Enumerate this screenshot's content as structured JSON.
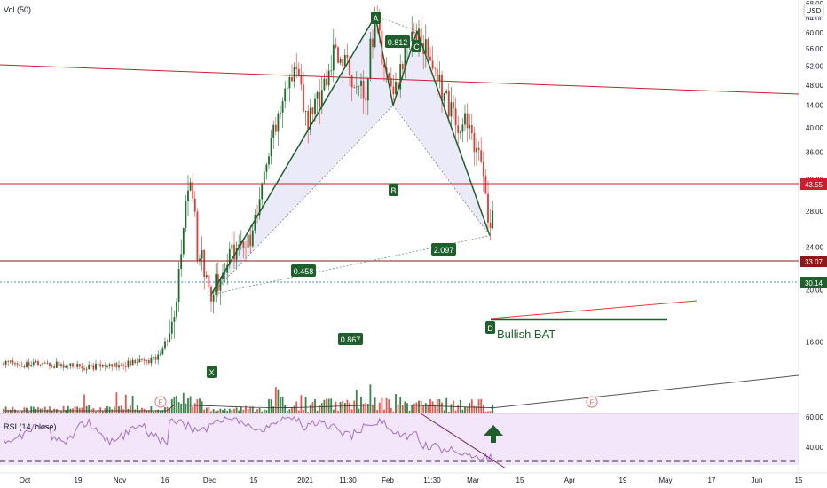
{
  "header": {
    "vol_label": "Vol (50)",
    "currency": "USD",
    "rsi_label": "RSI (14, close)"
  },
  "colors": {
    "bull": "#1b6d2b",
    "bear": "#e53935",
    "pattern_fill": "#e8e6f8",
    "rsi_band": "#f3e6fb",
    "rsi_line": "#a270c6",
    "hline": "#cc1e2c",
    "price_line": "#1565c0",
    "accent_green": "#1f5f2c"
  },
  "chart_data": {
    "type": "candlestick",
    "title": "",
    "price_axis": {
      "scale": "log",
      "ticks": [
        16,
        20,
        24,
        28,
        32,
        36,
        40,
        44,
        48,
        52,
        56,
        60,
        64,
        68
      ],
      "ylim": [
        13.2,
        68
      ]
    },
    "x_ticks": [
      "Oct",
      "19",
      "Nov",
      "16",
      "Dec",
      "15",
      "2021",
      "11:30",
      "Feb",
      "11:30",
      "Mar",
      "15",
      "Apr",
      "19",
      "May",
      "17",
      "Jun",
      "15"
    ],
    "price_range_by_period": [
      {
        "period": "Oct – mid Nov",
        "approx_low": 14,
        "approx_high": 15
      },
      {
        "period": "late Nov",
        "approx_high": 34
      },
      {
        "period": "early Dec",
        "approx_low": 19.6
      },
      {
        "period": "early Feb",
        "approx_high": 64.5
      },
      {
        "period": "Feb",
        "approx_low": 44
      },
      {
        "period": "mid Feb",
        "approx_high": 60.5
      },
      {
        "period": "early Mar",
        "approx_low": 25.2
      }
    ],
    "last_price": 30.14,
    "horizontal_levels": [
      {
        "value": 43.55,
        "label": "43.55"
      },
      {
        "value": 33.07,
        "label": "33.07"
      }
    ],
    "harmonic_pattern": {
      "name": "Bullish BAT",
      "points": [
        {
          "label": "X",
          "price": 19.6
        },
        {
          "label": "A",
          "price": 64.5
        },
        {
          "label": "B",
          "price": 44.0
        },
        {
          "label": "C",
          "price": 60.5
        },
        {
          "label": "D",
          "price": 25.2
        }
      ],
      "ratios": [
        {
          "label": "0.458",
          "between": "XB"
        },
        {
          "label": "0.812",
          "between": "AC"
        },
        {
          "label": "2.097",
          "between": "BD"
        },
        {
          "label": "0.867",
          "between": "XD"
        }
      ]
    },
    "event_markers": [
      "E",
      "E"
    ],
    "rsi": {
      "ticks": [
        40,
        60
      ],
      "upper_band": 70,
      "lower_band": 30
    }
  },
  "price_tags": {
    "level_1": "43.55",
    "level_2": "33.07",
    "last": "30.14"
  },
  "pattern_points": {
    "x": "X",
    "a": "A",
    "b": "B",
    "c": "C",
    "d": "D"
  },
  "pattern_ratios": {
    "r1": "0.458",
    "r2": "0.812",
    "r3": "2.097",
    "r4": "0.867"
  },
  "pattern_name": "Bullish BAT",
  "event_marks": {
    "e1": "E",
    "e2": "E"
  },
  "rsi_ticks": {
    "t60": "60.00",
    "t40": "40.00"
  },
  "price_tick_labels": [
    "68.00",
    "64.00",
    "60.00",
    "56.00",
    "52.00",
    "48.00",
    "44.00",
    "40.00",
    "36.00",
    "32.00",
    "28.00",
    "24.00",
    "20.00",
    "16.00"
  ]
}
